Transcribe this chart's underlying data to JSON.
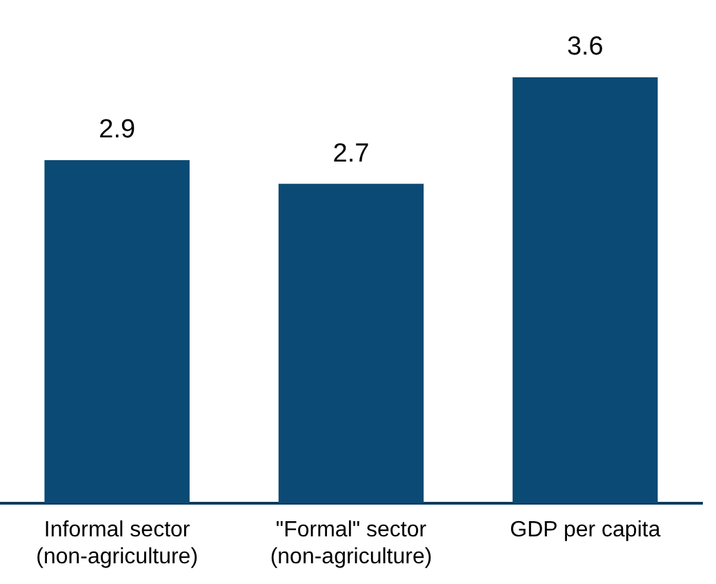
{
  "chart_data": {
    "type": "bar",
    "categories": [
      "Informal sector (non-agriculture)",
      "\"Formal\" sector (non-agriculture)",
      "GDP per capita"
    ],
    "values": [
      2.9,
      2.7,
      3.6
    ],
    "color": "#0b4a74",
    "data_labels": true,
    "tick_labels": "x",
    "grid": false,
    "legend": false
  }
}
